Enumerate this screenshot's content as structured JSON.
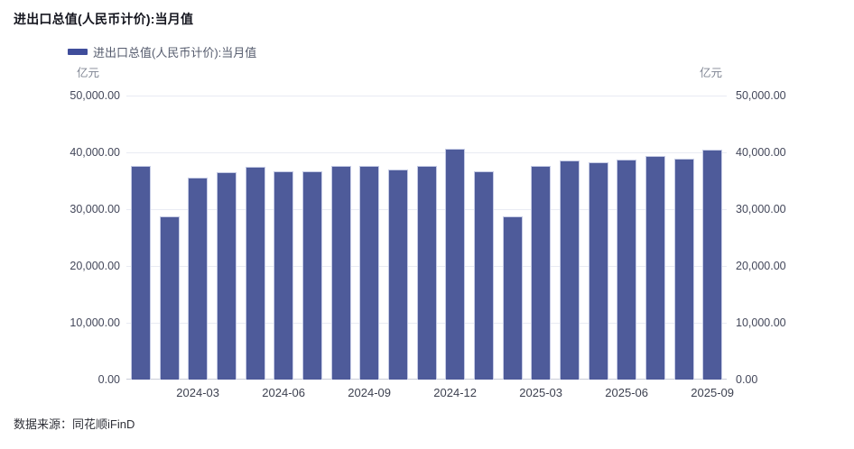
{
  "title": "进出口总值(人民币计价):当月值",
  "legend": {
    "label": "进出口总值(人民币计价):当月值",
    "swatch_color": "#3f4d9b"
  },
  "unit_left": "亿元",
  "unit_right": "亿元",
  "source": "数据来源：同花顺iFinD",
  "colors": {
    "bar_fill": "#4e5b9a",
    "bar_border": "#c5cbe5",
    "gridline": "#e9ebf3",
    "baseline": "#c9ccd7",
    "title_text": "#15161f",
    "axis_text": "#43475a"
  },
  "chart_data": {
    "type": "bar",
    "title": "进出口总值(人民币计价):当月值",
    "series_name": "进出口总值(人民币计价):当月值",
    "ylabel": "亿元",
    "ylim": [
      0,
      50000
    ],
    "ytick_step": 10000,
    "ytick_labels": [
      "0.00",
      "10,000.00",
      "20,000.00",
      "30,000.00",
      "40,000.00",
      "50,000.00"
    ],
    "grid": true,
    "legend_position": "top-left",
    "x": [
      "2024-01",
      "2024-02",
      "2024-03",
      "2024-04",
      "2024-05",
      "2024-06",
      "2024-07",
      "2024-08",
      "2024-09",
      "2024-10",
      "2024-11",
      "2024-12",
      "2025-01",
      "2025-02",
      "2025-03",
      "2025-04",
      "2025-05",
      "2025-06",
      "2025-07",
      "2025-08",
      "2025-09"
    ],
    "values": [
      37700,
      28700,
      35600,
      36500,
      37400,
      36700,
      36700,
      37600,
      37600,
      37000,
      37700,
      40700,
      36700,
      28800,
      37700,
      38600,
      38300,
      38700,
      39300,
      38900,
      40500
    ],
    "xtick_labels": [
      "2024-03",
      "2024-06",
      "2024-09",
      "2024-12",
      "2025-03",
      "2025-06",
      "2025-09"
    ],
    "xtick_indices": [
      2,
      5,
      8,
      11,
      14,
      17,
      20
    ]
  }
}
